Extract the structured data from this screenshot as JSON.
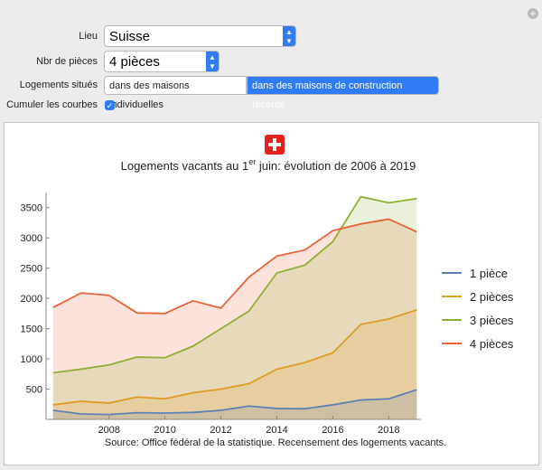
{
  "controls": {
    "lieu": {
      "label": "Lieu",
      "value": "Suisse"
    },
    "pieces": {
      "label": "Nbr de pièces",
      "value": "4 pièces"
    },
    "situes": {
      "label": "Logements situés",
      "options": [
        "dans des maisons individuelles",
        "dans des maisons de construction récente"
      ],
      "selected": 1
    },
    "cumuler": {
      "label": "Cumuler les courbes",
      "checked": true
    }
  },
  "chart_data": {
    "type": "area",
    "title": {
      "main": "Logements vacants au 1",
      "superscript": "er",
      "rest": " juin: évolution de 2006 à 2019"
    },
    "source": "Source: Office fédéral de la statistique. Recensement des logements vacants.",
    "x": [
      2006,
      2007,
      2008,
      2009,
      2010,
      2011,
      2012,
      2013,
      2014,
      2015,
      2016,
      2017,
      2018,
      2019
    ],
    "series": [
      {
        "name": "1 pièce",
        "color": "#5e81b5",
        "values": [
          150,
          90,
          80,
          110,
          105,
          115,
          150,
          220,
          180,
          175,
          240,
          320,
          340,
          490
        ]
      },
      {
        "name": "2 pièces",
        "color": "#e19c24",
        "values": [
          240,
          300,
          270,
          370,
          340,
          440,
          500,
          590,
          830,
          940,
          1100,
          1570,
          1660,
          1810
        ]
      },
      {
        "name": "3 pièces",
        "color": "#8fb032",
        "values": [
          770,
          830,
          900,
          1030,
          1020,
          1210,
          1500,
          1790,
          2420,
          2550,
          2940,
          3680,
          3580,
          3650
        ]
      },
      {
        "name": "4 pièces",
        "color": "#eb6235",
        "values": [
          1850,
          2090,
          2050,
          1760,
          1750,
          1960,
          1840,
          2350,
          2700,
          2800,
          3120,
          3230,
          3310,
          3100
        ]
      }
    ],
    "xlim": [
      2005.75,
      2019.15
    ],
    "xticks": [
      2008,
      2010,
      2012,
      2014,
      2016,
      2018
    ],
    "ylim": [
      0,
      3750
    ],
    "yticks": [
      500,
      1000,
      1500,
      2000,
      2500,
      3000,
      3500
    ],
    "legend": "right"
  }
}
